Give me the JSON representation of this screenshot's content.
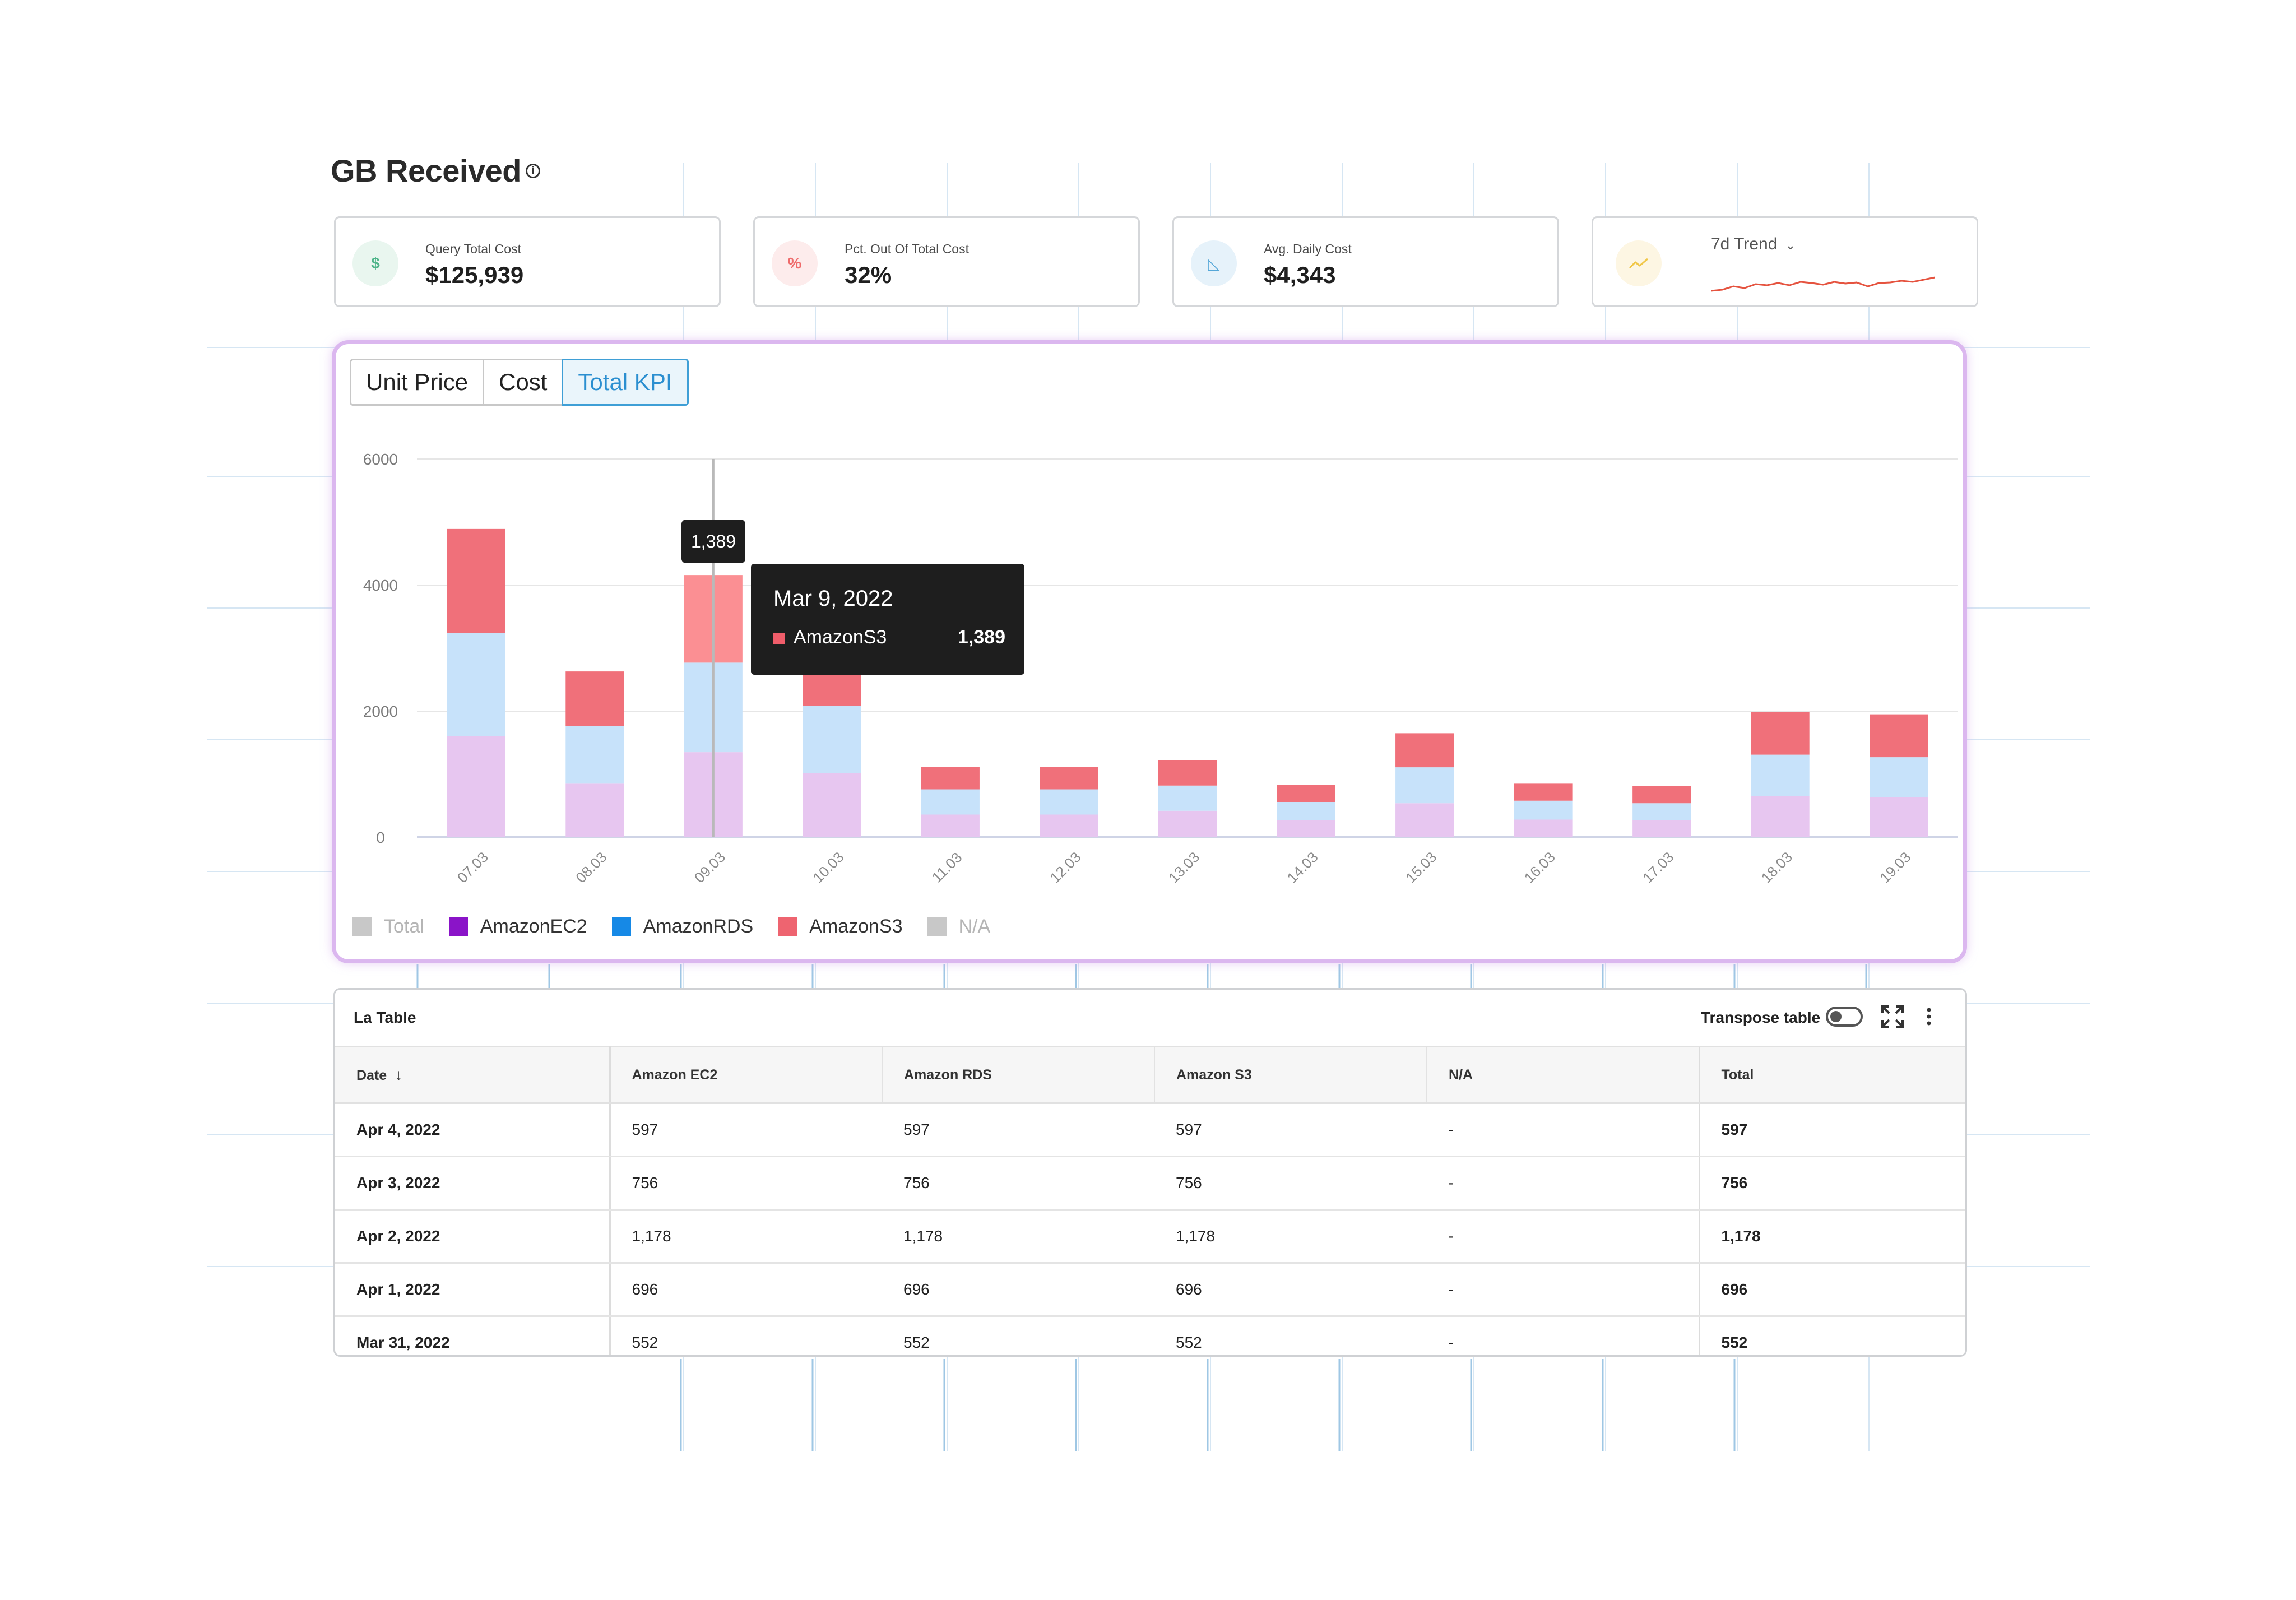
{
  "page": {
    "title": "GB Received",
    "info_icon": "info-icon"
  },
  "kpis": [
    {
      "label": "Query Total Cost",
      "value": "$125,939",
      "icon": "dollar-icon",
      "icon_glyph": "$",
      "icon_color": "#4fb58a",
      "icon_bg": "#e9f6ef"
    },
    {
      "label": "Pct. Out Of Total Cost",
      "value": "32%",
      "icon": "percent-icon",
      "icon_glyph": "%",
      "icon_color": "#ef6b6b",
      "icon_bg": "#fdecec"
    },
    {
      "label": "Avg. Daily Cost",
      "value": "$4,343",
      "icon": "chart-area-icon",
      "icon_glyph": "◺",
      "icon_color": "#55a7d8",
      "icon_bg": "#e6f2fa"
    }
  ],
  "trend": {
    "label": "7d Trend",
    "dropdown_icon": "chevron-down-icon",
    "icon": "trend-icon",
    "icon_color": "#f0c646",
    "icon_bg": "#fdf6e3",
    "line_color": "#e5533f"
  },
  "tabs": [
    {
      "label": "Unit Price",
      "active": false
    },
    {
      "label": "Cost",
      "active": false
    },
    {
      "label": "Total KPI",
      "active": true
    }
  ],
  "chart_data": {
    "type": "bar",
    "stacked": true,
    "categories": [
      "07.03",
      "08.03",
      "09.03",
      "10.03",
      "11.03",
      "12.03",
      "13.03",
      "14.03",
      "15.03",
      "16.03",
      "17.03",
      "18.03",
      "19.03"
    ],
    "series": [
      {
        "name": "Total",
        "color": "#c8c8c8",
        "values": [
          0,
          0,
          0,
          0,
          0,
          0,
          0,
          0,
          0,
          0,
          0,
          0,
          0
        ]
      },
      {
        "name": "AmazonEC2",
        "color": "#e7c6f0",
        "values": [
          1600,
          850,
          1350,
          1020,
          360,
          360,
          420,
          270,
          540,
          280,
          270,
          650,
          640
        ]
      },
      {
        "name": "AmazonRDS",
        "color": "#c7e2fa",
        "values": [
          1640,
          910,
          1420,
          1060,
          400,
          400,
          400,
          290,
          570,
          300,
          270,
          660,
          630
        ]
      },
      {
        "name": "AmazonS3",
        "color": "#f0707a",
        "values": [
          1650,
          870,
          1389,
          720,
          360,
          360,
          400,
          270,
          540,
          270,
          270,
          680,
          680
        ]
      },
      {
        "name": "N/A",
        "color": "#c8c8c8",
        "values": [
          0,
          0,
          0,
          0,
          0,
          0,
          0,
          0,
          0,
          0,
          0,
          0,
          0
        ]
      }
    ],
    "legend": [
      {
        "name": "Total",
        "color": "#c8c8c8",
        "muted": true
      },
      {
        "name": "AmazonEC2",
        "color": "#8a14c8",
        "muted": false
      },
      {
        "name": "AmazonRDS",
        "color": "#1689e6",
        "muted": false
      },
      {
        "name": "AmazonS3",
        "color": "#ee6470",
        "muted": false
      },
      {
        "name": "N/A",
        "color": "#c8c8c8",
        "muted": true
      }
    ],
    "y_ticks": [
      0,
      2000,
      4000,
      6000
    ],
    "ylim": [
      0,
      6000
    ],
    "grid": true,
    "highlight_index": 2,
    "highlight_bar_label": "1,389",
    "tooltip": {
      "date": "Mar 9, 2022",
      "series": "AmazonS3",
      "value": "1,389"
    }
  },
  "table": {
    "title": "La Table",
    "transpose_label": "Transpose table",
    "transpose_on": false,
    "columns": [
      "Date",
      "Amazon EC2",
      "Amazon RDS",
      "Amazon S3",
      "N/A",
      "Total"
    ],
    "sort_icon": "arrow-down-icon",
    "rows": [
      [
        "Apr 4, 2022",
        "597",
        "597",
        "597",
        "-",
        "597"
      ],
      [
        "Apr 3, 2022",
        "756",
        "756",
        "756",
        "-",
        "756"
      ],
      [
        "Apr 2, 2022",
        "1,178",
        "1,178",
        "1,178",
        "-",
        "1,178"
      ],
      [
        "Apr 1, 2022",
        "696",
        "696",
        "696",
        "-",
        "696"
      ],
      [
        "Mar 31, 2022",
        "552",
        "552",
        "552",
        "-",
        "552"
      ]
    ]
  }
}
